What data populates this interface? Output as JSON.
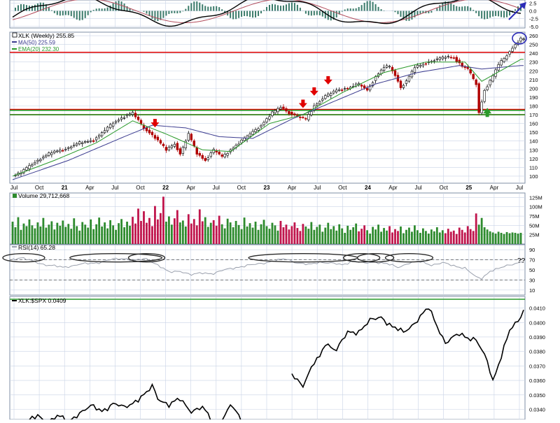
{
  "colors": {
    "frame": "#7f8fa6",
    "grid": "#c9d3e6",
    "price_up": "#000000",
    "price_down": "#b00000",
    "ma50": "#3b3b8f",
    "ema20": "#2a9a2a",
    "resistance": "#e00000",
    "support": "#2a9a2a",
    "vol_up": "#2e8b2e",
    "vol_down": "#c0154c",
    "rsi_line": "#9aa0ad",
    "ratio_line": "#000000",
    "annotation_ellipse": "#2b2b2b",
    "annotation_blue": "#2b2bb8",
    "arrow_red": "#e00000",
    "arrow_green": "#2a9a2a",
    "macd_black": "#000000",
    "macd_red": "#b24a5a",
    "macd_hist": "#3a7a6a"
  },
  "chart_data": [
    {
      "type": "line",
      "panel": "macd",
      "y_tick_labels": [
        "2.5",
        "0.0",
        "-2.5",
        "-5.0"
      ],
      "ylim": [
        -5.5,
        3.5
      ],
      "note_arrow": "blue-upward-arrow"
    },
    {
      "type": "candlestick",
      "panel": "price",
      "legend": [
        {
          "text": "XLK (Weekly) 255.85",
          "color": "#000000"
        },
        {
          "text": "MA(50) 225.59",
          "color": "#3b3b8f"
        },
        {
          "text": "EMA(20) 232.30",
          "color": "#2a9a2a"
        }
      ],
      "x_tick_labels": [
        "Jul",
        "Oct",
        "21",
        "Apr",
        "Jul",
        "Oct",
        "22",
        "Apr",
        "Jul",
        "Oct",
        "23",
        "Apr",
        "Jul",
        "Oct",
        "24",
        "Apr",
        "Jul",
        "Oct",
        "25",
        "Apr",
        "Jul"
      ],
      "y_tick_labels": [
        260,
        250,
        240,
        230,
        220,
        210,
        200,
        190,
        180,
        170,
        160,
        150,
        140,
        130,
        120,
        110,
        100
      ],
      "ylim": [
        92,
        264
      ],
      "price_anchors": [
        [
          0,
          100
        ],
        [
          3,
          104
        ],
        [
          6,
          112
        ],
        [
          10,
          120
        ],
        [
          14,
          127
        ],
        [
          19,
          131
        ],
        [
          24,
          138
        ],
        [
          29,
          141
        ],
        [
          33,
          152
        ],
        [
          36,
          161
        ],
        [
          40,
          168
        ],
        [
          43,
          172
        ],
        [
          47,
          155
        ],
        [
          51,
          144
        ],
        [
          55,
          130
        ],
        [
          58,
          137
        ],
        [
          60,
          125
        ],
        [
          63,
          148
        ],
        [
          66,
          126
        ],
        [
          69,
          118
        ],
        [
          72,
          130
        ],
        [
          75,
          122
        ],
        [
          80,
          135
        ],
        [
          85,
          148
        ],
        [
          89,
          158
        ],
        [
          93,
          172
        ],
        [
          96,
          179
        ],
        [
          99,
          172
        ],
        [
          102,
          168
        ],
        [
          105,
          165
        ],
        [
          108,
          180
        ],
        [
          112,
          191
        ],
        [
          116,
          198
        ],
        [
          120,
          200
        ],
        [
          124,
          205
        ],
        [
          127,
          198
        ],
        [
          130,
          213
        ],
        [
          133,
          224
        ],
        [
          135,
          225
        ],
        [
          137,
          215
        ],
        [
          139,
          201
        ],
        [
          141,
          208
        ],
        [
          144,
          224
        ],
        [
          148,
          229
        ],
        [
          152,
          233
        ],
        [
          155,
          236
        ],
        [
          158,
          235
        ],
        [
          161,
          225
        ],
        [
          163,
          222
        ],
        [
          166,
          205
        ],
        [
          167,
          172
        ],
        [
          169,
          198
        ],
        [
          171,
          208
        ],
        [
          174,
          227
        ],
        [
          177,
          238
        ],
        [
          180,
          250
        ],
        [
          182,
          256
        ]
      ],
      "ma50_anchors": [
        [
          0,
          96
        ],
        [
          20,
          118
        ],
        [
          40,
          145
        ],
        [
          50,
          158
        ],
        [
          62,
          155
        ],
        [
          74,
          145
        ],
        [
          86,
          143
        ],
        [
          100,
          165
        ],
        [
          115,
          185
        ],
        [
          130,
          205
        ],
        [
          145,
          218
        ],
        [
          160,
          226
        ],
        [
          168,
          222
        ],
        [
          182,
          226
        ]
      ],
      "ema20_anchors": [
        [
          0,
          100
        ],
        [
          15,
          118
        ],
        [
          30,
          138
        ],
        [
          43,
          163
        ],
        [
          55,
          148
        ],
        [
          68,
          130
        ],
        [
          78,
          128
        ],
        [
          92,
          160
        ],
        [
          104,
          170
        ],
        [
          118,
          195
        ],
        [
          133,
          218
        ],
        [
          148,
          230
        ],
        [
          162,
          230
        ],
        [
          168,
          208
        ],
        [
          182,
          233
        ]
      ],
      "weeks_count": 183,
      "horizontal_levels": [
        {
          "value": 241,
          "kind": "resistance"
        },
        {
          "value": 176,
          "kind": "resistance"
        },
        {
          "value": 170,
          "kind": "resistance"
        },
        {
          "value": 175,
          "kind": "support"
        },
        {
          "value": 170,
          "kind": "support"
        }
      ],
      "down_arrows_at_week": [
        51,
        104,
        108,
        113
      ],
      "up_arrows_at_week": [
        170
      ],
      "circled_week": 182
    },
    {
      "type": "bar",
      "panel": "volume",
      "legend": "Volume 29,712,668",
      "y_tick_labels": [
        "125M",
        "100M",
        "75M",
        "50M",
        "25M"
      ],
      "ylim": [
        0,
        137
      ],
      "bars_millions": [
        60,
        45,
        72,
        38,
        55,
        48,
        66,
        50,
        42,
        58,
        47,
        70,
        44,
        52,
        61,
        39,
        57,
        49,
        63,
        46,
        54,
        41,
        69,
        48,
        36,
        59,
        52,
        44,
        66,
        40,
        53,
        71,
        47,
        58,
        42,
        64,
        50,
        38,
        56,
        67,
        45,
        60,
        49,
        73,
        55,
        95,
        62,
        88,
        57,
        70,
        48,
        102,
        66,
        83,
        127,
        60,
        74,
        52,
        69,
        91,
        58,
        63,
        47,
        80,
        55,
        67,
        50,
        93,
        61,
        72,
        46,
        57,
        64,
        49,
        76,
        53,
        42,
        68,
        58,
        45,
        62,
        51,
        40,
        71,
        47,
        56,
        44,
        60,
        38,
        53,
        65,
        48,
        41,
        57,
        50,
        36,
        62,
        45,
        52,
        39,
        48,
        58,
        43,
        35,
        54,
        47,
        41,
        59,
        38,
        46,
        52,
        33,
        44,
        57,
        40,
        48,
        36,
        53,
        42,
        30,
        49,
        38,
        45,
        55,
        34,
        41,
        50,
        37,
        28,
        46,
        39,
        52,
        33,
        43,
        36,
        48,
        31,
        40,
        35,
        47,
        29,
        38,
        44,
        33,
        50,
        37,
        30,
        42,
        35,
        28,
        39,
        34,
        45,
        31,
        37,
        29,
        41,
        33,
        36,
        27,
        44,
        38,
        31,
        48,
        40,
        35,
        82,
        52,
        70,
        45,
        39,
        34,
        31,
        28,
        33,
        30,
        27,
        32,
        29,
        31,
        30,
        28,
        30
      ]
    },
    {
      "type": "line",
      "panel": "rsi",
      "legend": "RSI(14) 65.28",
      "y_tick_labels": [
        90,
        70,
        50,
        30,
        10
      ],
      "ylim": [
        0,
        100
      ],
      "ref_lines": [
        70,
        30
      ],
      "question_label": "??",
      "rsi_anchors": [
        [
          0,
          72
        ],
        [
          3,
          74
        ],
        [
          8,
          66
        ],
        [
          12,
          60
        ],
        [
          18,
          55
        ],
        [
          24,
          61
        ],
        [
          30,
          64
        ],
        [
          36,
          71
        ],
        [
          40,
          73
        ],
        [
          44,
          69
        ],
        [
          48,
          72
        ],
        [
          52,
          60
        ],
        [
          56,
          45
        ],
        [
          60,
          48
        ],
        [
          64,
          40
        ],
        [
          68,
          44
        ],
        [
          72,
          43
        ],
        [
          76,
          50
        ],
        [
          80,
          55
        ],
        [
          86,
          60
        ],
        [
          92,
          66
        ],
        [
          98,
          72
        ],
        [
          102,
          64
        ],
        [
          106,
          60
        ],
        [
          110,
          66
        ],
        [
          114,
          63
        ],
        [
          118,
          60
        ],
        [
          122,
          68
        ],
        [
          126,
          63
        ],
        [
          130,
          66
        ],
        [
          134,
          62
        ],
        [
          138,
          55
        ],
        [
          142,
          64
        ],
        [
          146,
          66
        ],
        [
          150,
          60
        ],
        [
          154,
          64
        ],
        [
          158,
          58
        ],
        [
          162,
          54
        ],
        [
          166,
          35
        ],
        [
          168,
          33
        ],
        [
          171,
          48
        ],
        [
          175,
          54
        ],
        [
          178,
          60
        ],
        [
          182,
          66
        ]
      ],
      "ellipses_at_week": [
        [
          4,
          12
        ],
        [
          37,
          30
        ],
        [
          48,
          10
        ],
        [
          104,
          36
        ],
        [
          125,
          10
        ],
        [
          130,
          10
        ],
        [
          142,
          14
        ]
      ]
    },
    {
      "type": "line",
      "panel": "ratio",
      "legend": "XLK:$SPX 0.0409",
      "y_tick_labels": [
        "0.0410",
        "0.0400",
        "0.0390",
        "0.0380",
        "0.0370",
        "0.0360",
        "0.0350",
        "0.0340"
      ],
      "ylim": [
        0.0333,
        0.0418
      ],
      "ratio_anchors": [
        [
          6,
          0.0333
        ],
        [
          9,
          0.0335
        ],
        [
          12,
          0.0331
        ],
        [
          16,
          0.0336
        ],
        [
          20,
          0.0331
        ],
        [
          24,
          0.0338
        ],
        [
          28,
          0.0342
        ],
        [
          32,
          0.0339
        ],
        [
          36,
          0.0344
        ],
        [
          40,
          0.0341
        ],
        [
          44,
          0.0346
        ],
        [
          48,
          0.0351
        ],
        [
          50,
          0.0356
        ],
        [
          52,
          0.0348
        ],
        [
          56,
          0.0343
        ],
        [
          60,
          0.0347
        ],
        [
          64,
          0.0339
        ],
        [
          68,
          0.0341
        ],
        [
          72,
          0.0331
        ],
        [
          76,
          0.0335
        ],
        [
          78,
          0.0343
        ],
        [
          80,
          0.0338
        ],
        [
          82,
          0.0333
        ],
        [
          100,
          0.0364
        ],
        [
          104,
          0.0357
        ],
        [
          108,
          0.0372
        ],
        [
          110,
          0.0376
        ],
        [
          112,
          0.0386
        ],
        [
          116,
          0.0381
        ],
        [
          120,
          0.0393
        ],
        [
          124,
          0.0394
        ],
        [
          128,
          0.0401
        ],
        [
          132,
          0.0404
        ],
        [
          136,
          0.0397
        ],
        [
          140,
          0.0393
        ],
        [
          144,
          0.04
        ],
        [
          146,
          0.0404
        ],
        [
          149,
          0.041
        ],
        [
          152,
          0.0398
        ],
        [
          155,
          0.0386
        ],
        [
          160,
          0.0392
        ],
        [
          166,
          0.0388
        ],
        [
          170,
          0.0373
        ],
        [
          172,
          0.036
        ],
        [
          175,
          0.0377
        ],
        [
          178,
          0.0394
        ],
        [
          181,
          0.0401
        ],
        [
          183,
          0.0409
        ]
      ]
    }
  ]
}
